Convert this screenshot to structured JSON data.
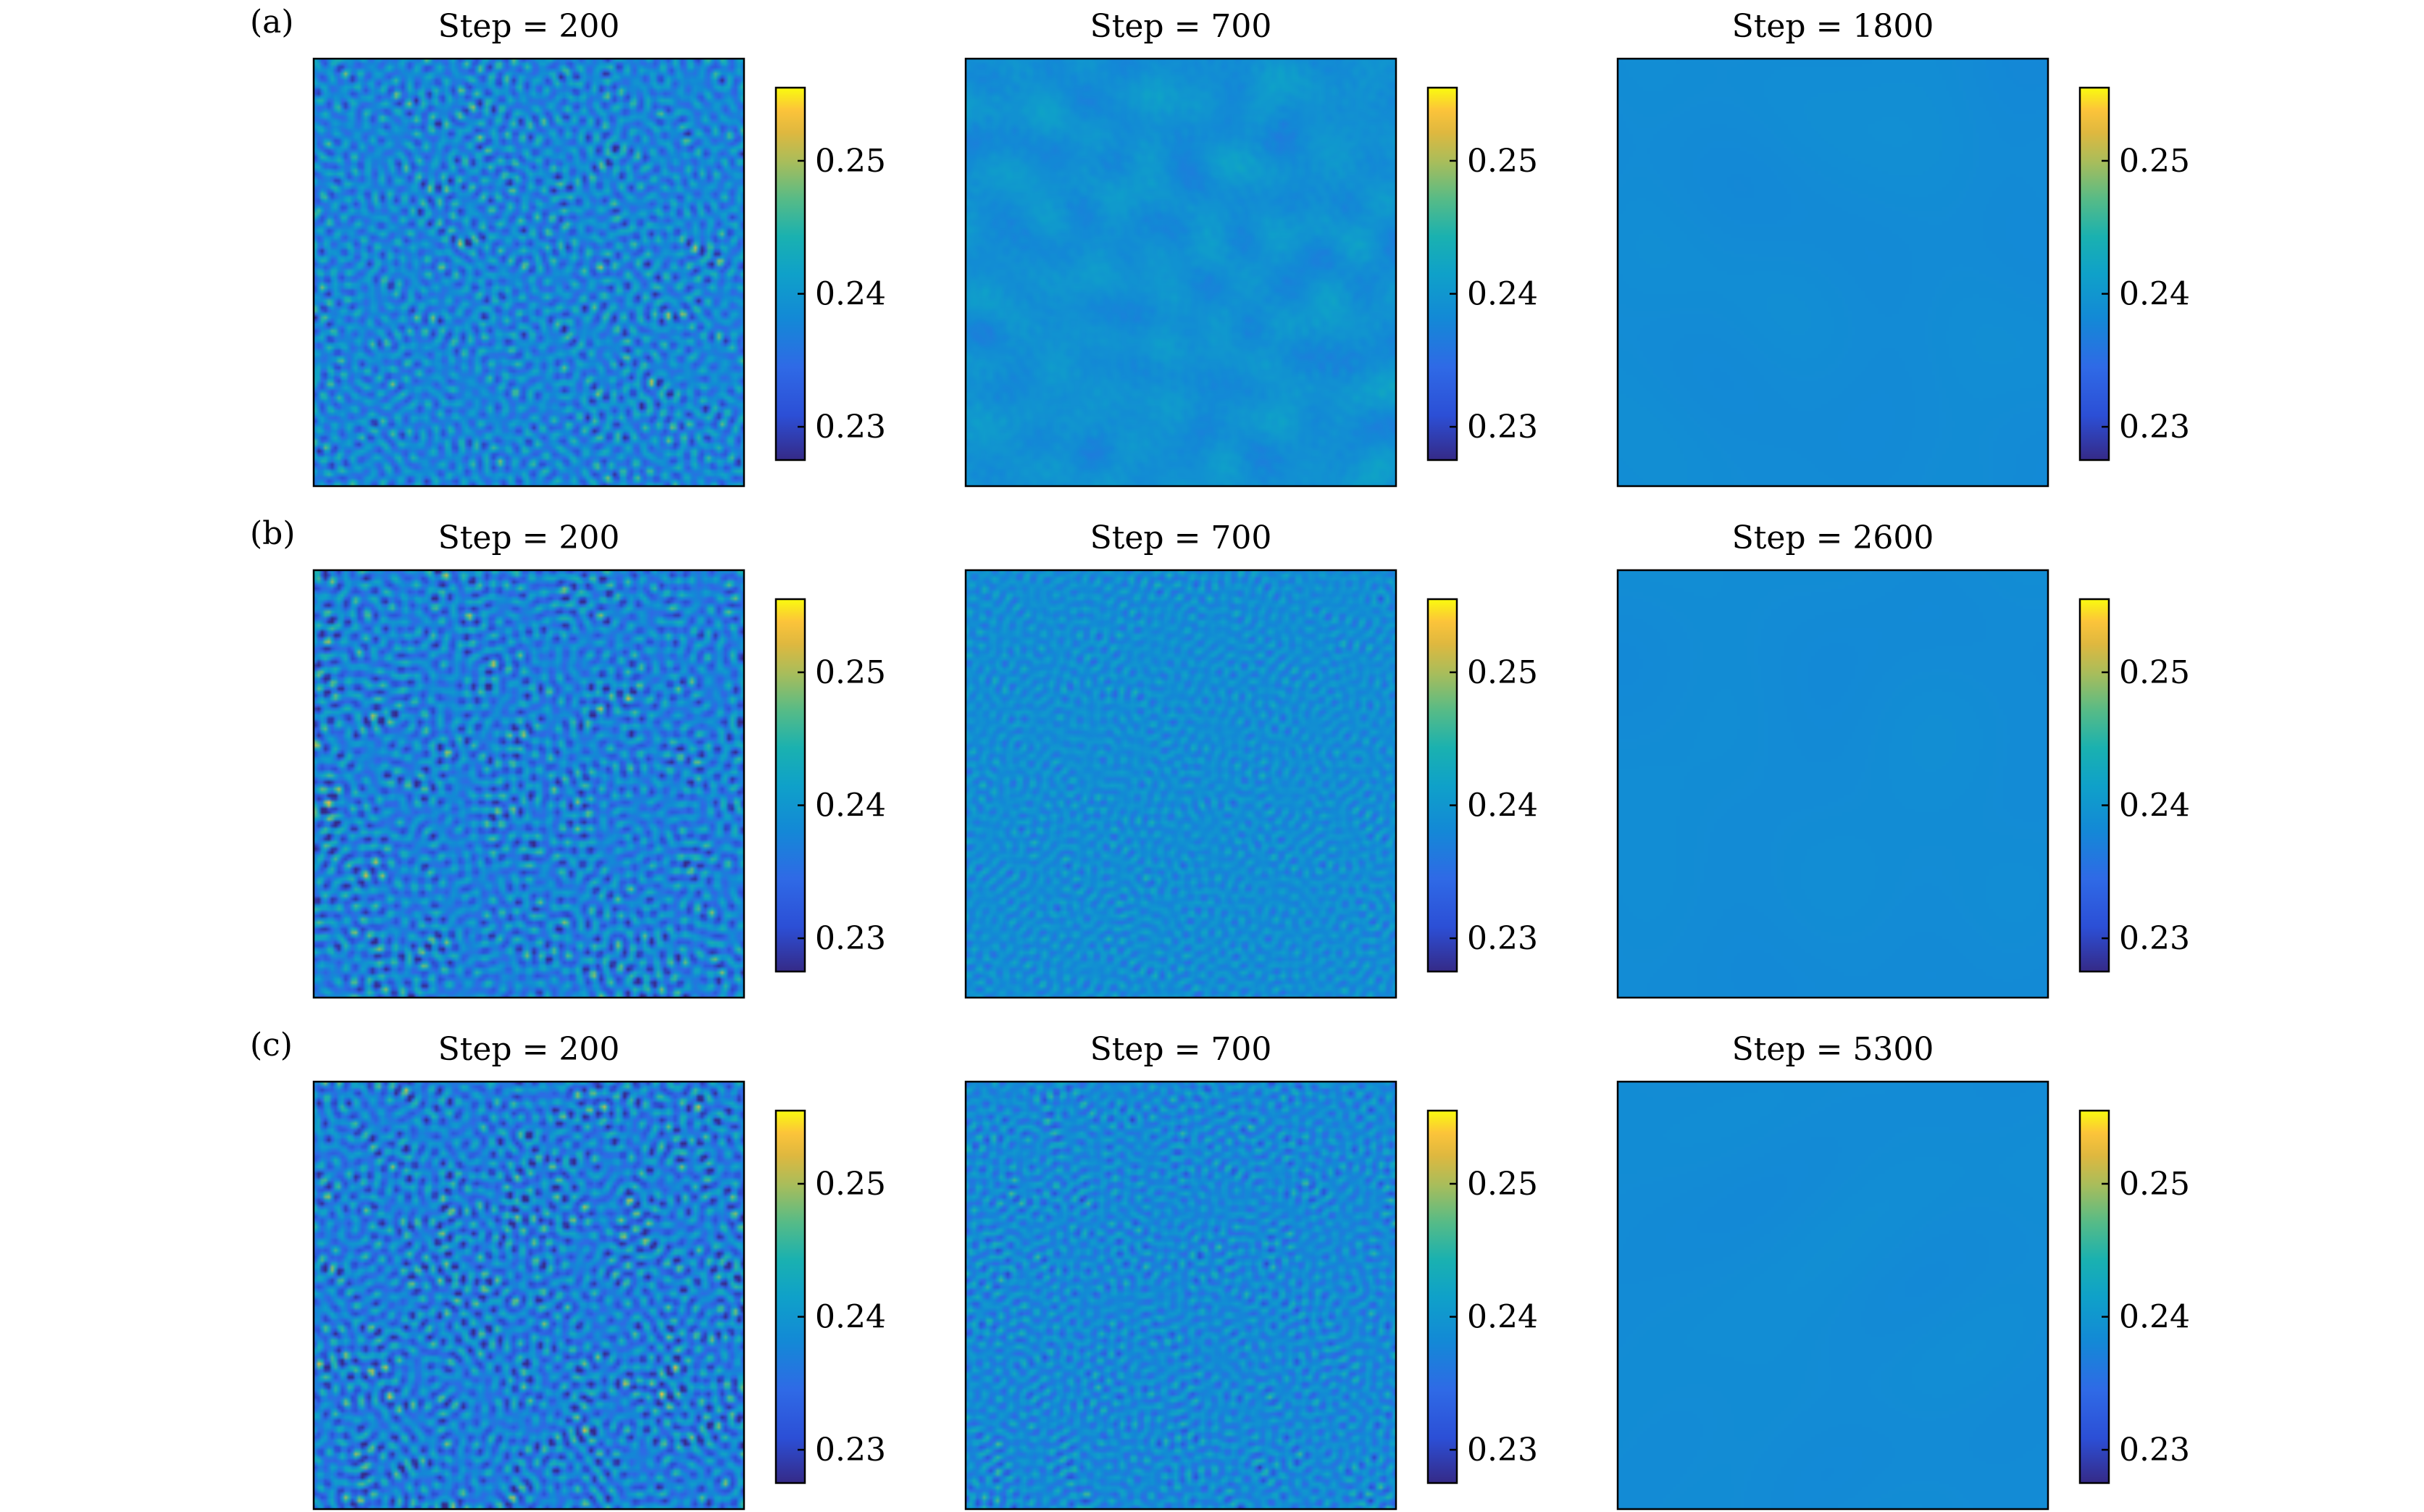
{
  "chart_data": {
    "type": "heatmap",
    "colormap": "parula",
    "colorbar": {
      "min": 0.2275,
      "max": 0.2555,
      "ticks": [
        0.23,
        0.24,
        0.25
      ],
      "tick_labels": [
        "0.23",
        "0.24",
        "0.25"
      ]
    },
    "rows": [
      {
        "label": "(a)",
        "panels": [
          {
            "title": "Step = 200",
            "texture": "fine-strong",
            "mean_value": 0.2378,
            "amplitude": 0.0085
          },
          {
            "title": "Step = 700",
            "texture": "coarse-faint",
            "mean_value": 0.2392,
            "amplitude": 0.002
          },
          {
            "title": "Step = 1800",
            "texture": "uniform",
            "mean_value": 0.2385,
            "amplitude": 0.0003
          }
        ]
      },
      {
        "label": "(b)",
        "panels": [
          {
            "title": "Step = 200",
            "texture": "fine-strong",
            "mean_value": 0.2372,
            "amplitude": 0.0095
          },
          {
            "title": "Step = 700",
            "texture": "fine-medium",
            "mean_value": 0.2388,
            "amplitude": 0.004
          },
          {
            "title": "Step = 2600",
            "texture": "uniform",
            "mean_value": 0.2385,
            "amplitude": 0.0002
          }
        ]
      },
      {
        "label": "(c)",
        "panels": [
          {
            "title": "Step = 200",
            "texture": "fine-strong",
            "mean_value": 0.237,
            "amplitude": 0.01
          },
          {
            "title": "Step = 700",
            "texture": "fine-medium",
            "mean_value": 0.2383,
            "amplitude": 0.0055
          },
          {
            "title": "Step = 5300",
            "texture": "uniform",
            "mean_value": 0.2385,
            "amplitude": 0.0002
          }
        ]
      }
    ]
  }
}
